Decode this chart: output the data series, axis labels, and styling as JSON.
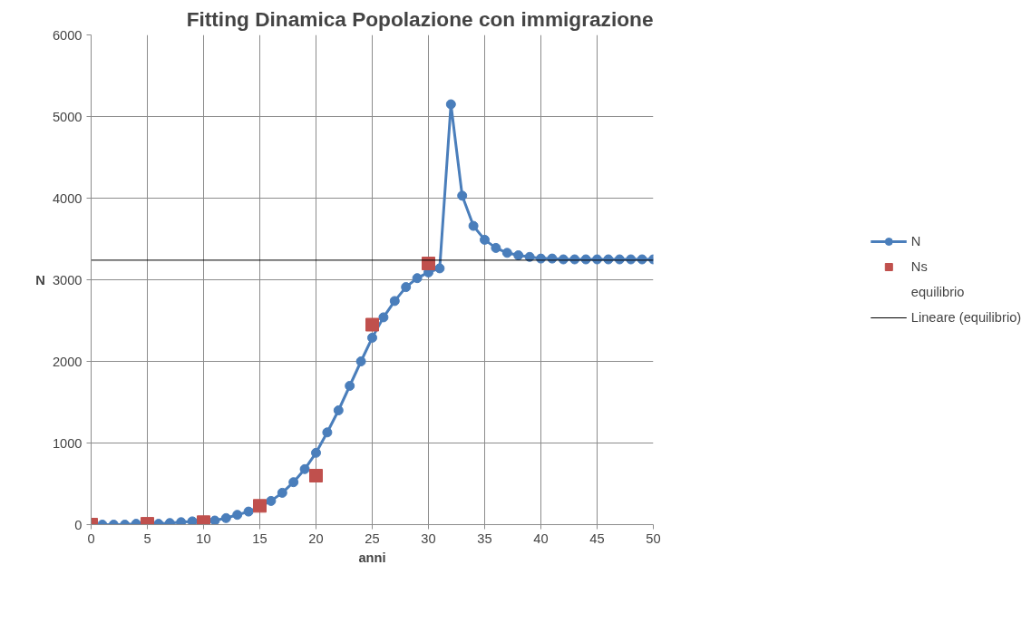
{
  "chart_data": {
    "type": "line",
    "title": "Fitting Dinamica Popolazione con immigrazione",
    "xlabel": "anni",
    "ylabel": "N",
    "xlim": [
      0,
      50
    ],
    "xticks": [
      0,
      5,
      10,
      15,
      20,
      25,
      30,
      35,
      40,
      45,
      50
    ],
    "ylim": [
      0,
      6000
    ],
    "yticks": [
      0,
      1000,
      2000,
      3000,
      4000,
      5000,
      6000
    ],
    "grid": true,
    "legend": "right",
    "line_style": "solid",
    "series": [
      {
        "name": "N",
        "marker": "circle",
        "color": "#4a7ebb",
        "x": [
          0,
          1,
          2,
          3,
          4,
          5,
          6,
          7,
          8,
          9,
          10,
          11,
          12,
          13,
          14,
          15,
          16,
          17,
          18,
          19,
          20,
          21,
          22,
          23,
          24,
          25,
          26,
          27,
          28,
          29,
          30,
          31,
          32,
          33,
          34,
          35,
          36,
          37,
          38,
          39,
          40,
          41,
          42,
          43,
          44,
          45,
          46,
          47,
          48,
          49,
          50
        ],
        "values": [
          0,
          0,
          0,
          0,
          10,
          10,
          10,
          20,
          30,
          40,
          40,
          50,
          80,
          120,
          160,
          220,
          290,
          390,
          520,
          680,
          880,
          1130,
          1400,
          1700,
          2000,
          2290,
          2540,
          2740,
          2910,
          3020,
          3090,
          3140,
          5150,
          4030,
          3660,
          3490,
          3390,
          3330,
          3300,
          3280,
          3260,
          3260,
          3250,
          3250,
          3250,
          3250,
          3250,
          3250,
          3250,
          3250,
          3250
        ]
      },
      {
        "name": "Ns",
        "type": "scatter",
        "marker": "square",
        "color": "#c0504d",
        "x": [
          0,
          5,
          10,
          15,
          20,
          25,
          30
        ],
        "values": [
          0,
          10,
          30,
          230,
          600,
          2450,
          3200
        ]
      },
      {
        "name": "equilibrio",
        "type": "scatter",
        "marker": "none"
      },
      {
        "name": "Lineare (equilibrio)",
        "type": "line",
        "marker": "none",
        "color": "#000000",
        "x": [
          0,
          50
        ],
        "values": [
          3240,
          3240
        ]
      }
    ]
  }
}
